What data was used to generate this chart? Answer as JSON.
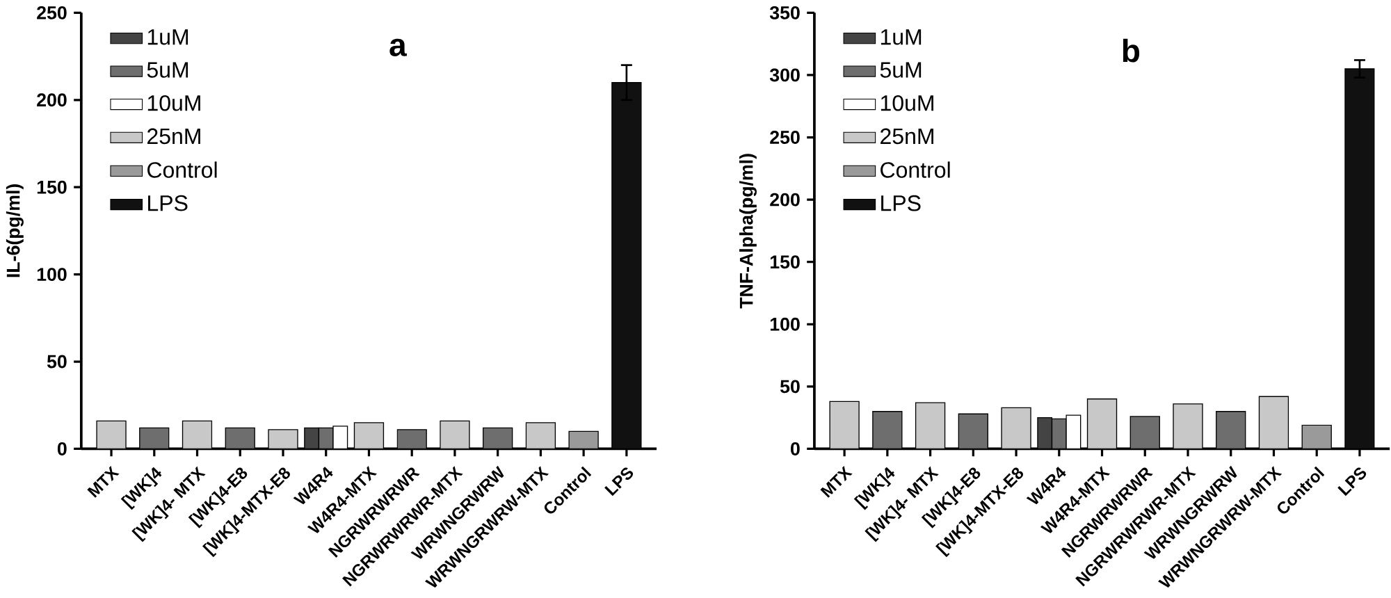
{
  "chart_data": [
    {
      "type": "bar",
      "title": "a",
      "ylabel": "IL-6(pg/ml)",
      "categories": [
        "MTX",
        "[WK]4",
        "[WK]4- MTX",
        "[WK]4-E8",
        "[WK]4-MTX-E8",
        "W4R4",
        "W4R4-MTX",
        "NGRWRWRWR",
        "NGRWRWRWR-MTX",
        "WRWNGRWRW",
        "WRWNGRWRW-MTX",
        "Control",
        "LPS"
      ],
      "series": [
        {
          "name": "1uM",
          "color": "#444444",
          "values": [
            null,
            null,
            null,
            null,
            null,
            12,
            null,
            null,
            null,
            null,
            null,
            null,
            null
          ]
        },
        {
          "name": "5uM",
          "color": "#6e6e6e",
          "values": [
            null,
            12,
            null,
            12,
            null,
            12,
            null,
            11,
            null,
            12,
            null,
            null,
            null
          ]
        },
        {
          "name": "10uM",
          "color": "#ffffff",
          "values": [
            null,
            null,
            null,
            null,
            null,
            13,
            null,
            null,
            null,
            null,
            null,
            null,
            null
          ]
        },
        {
          "name": "25nM",
          "color": "#c8c8c8",
          "values": [
            16,
            null,
            16,
            null,
            11,
            null,
            15,
            null,
            16,
            null,
            15,
            null,
            null
          ]
        },
        {
          "name": "Control",
          "color": "#9a9a9a",
          "values": [
            null,
            null,
            null,
            null,
            null,
            null,
            null,
            null,
            null,
            null,
            null,
            10,
            null
          ]
        },
        {
          "name": "LPS",
          "color": "#111111",
          "values": [
            null,
            null,
            null,
            null,
            null,
            null,
            null,
            null,
            null,
            null,
            null,
            null,
            210
          ],
          "errors": [
            null,
            null,
            null,
            null,
            null,
            null,
            null,
            null,
            null,
            null,
            null,
            null,
            10
          ]
        }
      ],
      "ylim": [
        0,
        250
      ],
      "yticks": [
        0,
        50,
        100,
        150,
        200,
        250
      ],
      "legend": "top left"
    },
    {
      "type": "bar",
      "title": "b",
      "ylabel": "TNF-Alpha(pg/ml)",
      "categories": [
        "MTX",
        "[WK]4",
        "[WK]4- MTX",
        "[WK]4-E8",
        "[WK]4-MTX-E8",
        "W4R4",
        "W4R4-MTX",
        "NGRWRWRWR",
        "NGRWRWRWR-MTX",
        "WRWNGRWRW",
        "WRWNGRWRW-MTX",
        "Control",
        "LPS"
      ],
      "series": [
        {
          "name": "1uM",
          "color": "#444444",
          "values": [
            null,
            null,
            null,
            null,
            null,
            25,
            null,
            null,
            null,
            null,
            null,
            null,
            null
          ]
        },
        {
          "name": "5uM",
          "color": "#6e6e6e",
          "values": [
            null,
            30,
            null,
            28,
            null,
            24,
            null,
            26,
            null,
            30,
            null,
            null,
            null
          ]
        },
        {
          "name": "10uM",
          "color": "#ffffff",
          "values": [
            null,
            null,
            null,
            null,
            null,
            27,
            null,
            null,
            null,
            null,
            null,
            null,
            null
          ]
        },
        {
          "name": "25nM",
          "color": "#c8c8c8",
          "values": [
            38,
            null,
            37,
            null,
            33,
            null,
            40,
            null,
            36,
            null,
            42,
            null,
            null
          ]
        },
        {
          "name": "Control",
          "color": "#9a9a9a",
          "values": [
            null,
            null,
            null,
            null,
            null,
            null,
            null,
            null,
            null,
            null,
            null,
            19,
            null
          ]
        },
        {
          "name": "LPS",
          "color": "#111111",
          "values": [
            null,
            null,
            null,
            null,
            null,
            null,
            null,
            null,
            null,
            null,
            null,
            null,
            305
          ],
          "errors": [
            null,
            null,
            null,
            null,
            null,
            null,
            null,
            null,
            null,
            null,
            null,
            null,
            7
          ]
        }
      ],
      "ylim": [
        0,
        350
      ],
      "yticks": [
        0,
        50,
        100,
        150,
        200,
        250,
        300,
        350
      ],
      "legend": "top left"
    }
  ]
}
